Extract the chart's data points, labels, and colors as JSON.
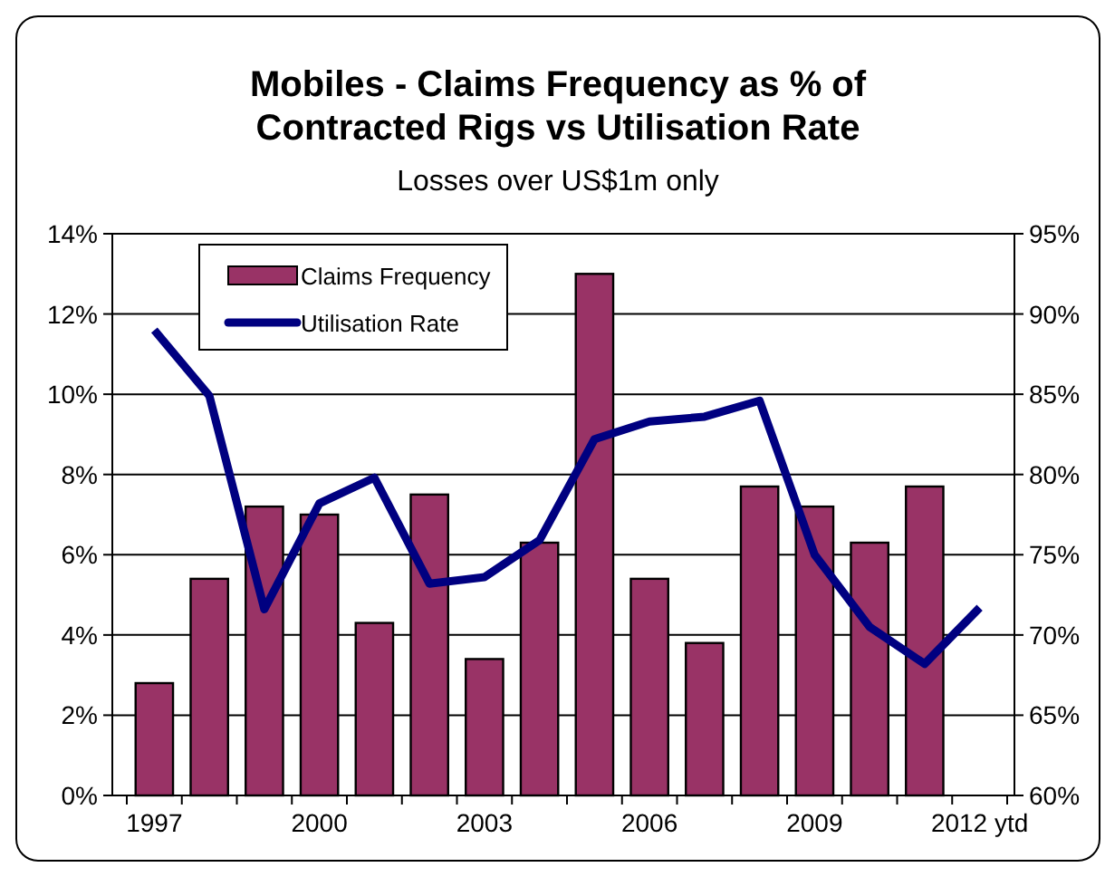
{
  "chart_data": {
    "type": "bar",
    "title": "Mobiles - Claims Frequency as % of Contracted Rigs vs Utilisation Rate",
    "subtitle": "Losses over US$1m only",
    "categories": [
      "1997",
      null,
      null,
      "2000",
      null,
      null,
      "2003",
      null,
      null,
      "2006",
      null,
      null,
      "2009",
      null,
      null,
      "2012 ytd"
    ],
    "series": [
      {
        "name": "Claims Frequency",
        "color": "#993366",
        "values": [
          2.8,
          5.4,
          7.2,
          7.0,
          4.3,
          7.5,
          3.4,
          6.3,
          13.0,
          5.4,
          3.8,
          7.7,
          7.2,
          6.3,
          7.7,
          null
        ]
      },
      {
        "name": "Utilisation Rate",
        "type": "line",
        "axis": "y2",
        "color": "#000080",
        "values": [
          89.0,
          84.9,
          71.6,
          78.2,
          79.8,
          73.2,
          73.6,
          75.9,
          82.2,
          83.3,
          83.6,
          84.6,
          75.0,
          70.5,
          68.2,
          71.7
        ]
      }
    ],
    "ylim": [
      0,
      14
    ],
    "yticks": [
      {
        "value": 0,
        "label": "0%"
      },
      {
        "value": 2,
        "label": "2%"
      },
      {
        "value": 4,
        "label": "4%"
      },
      {
        "value": 6,
        "label": "6%"
      },
      {
        "value": 8,
        "label": "8%"
      },
      {
        "value": 10,
        "label": "10%"
      },
      {
        "value": 12,
        "label": "12%"
      },
      {
        "value": 14,
        "label": "14%"
      }
    ],
    "y2lim": [
      60,
      95
    ],
    "y2ticks": [
      {
        "value": 60,
        "label": "60%"
      },
      {
        "value": 65,
        "label": "65%"
      },
      {
        "value": 70,
        "label": "70%"
      },
      {
        "value": 75,
        "label": "75%"
      },
      {
        "value": 80,
        "label": "80%"
      },
      {
        "value": 85,
        "label": "85%"
      },
      {
        "value": 90,
        "label": "90%"
      },
      {
        "value": 95,
        "label": "95%"
      }
    ],
    "grid": "y",
    "legend": "top left",
    "marker": "none",
    "line_style": "solid"
  }
}
